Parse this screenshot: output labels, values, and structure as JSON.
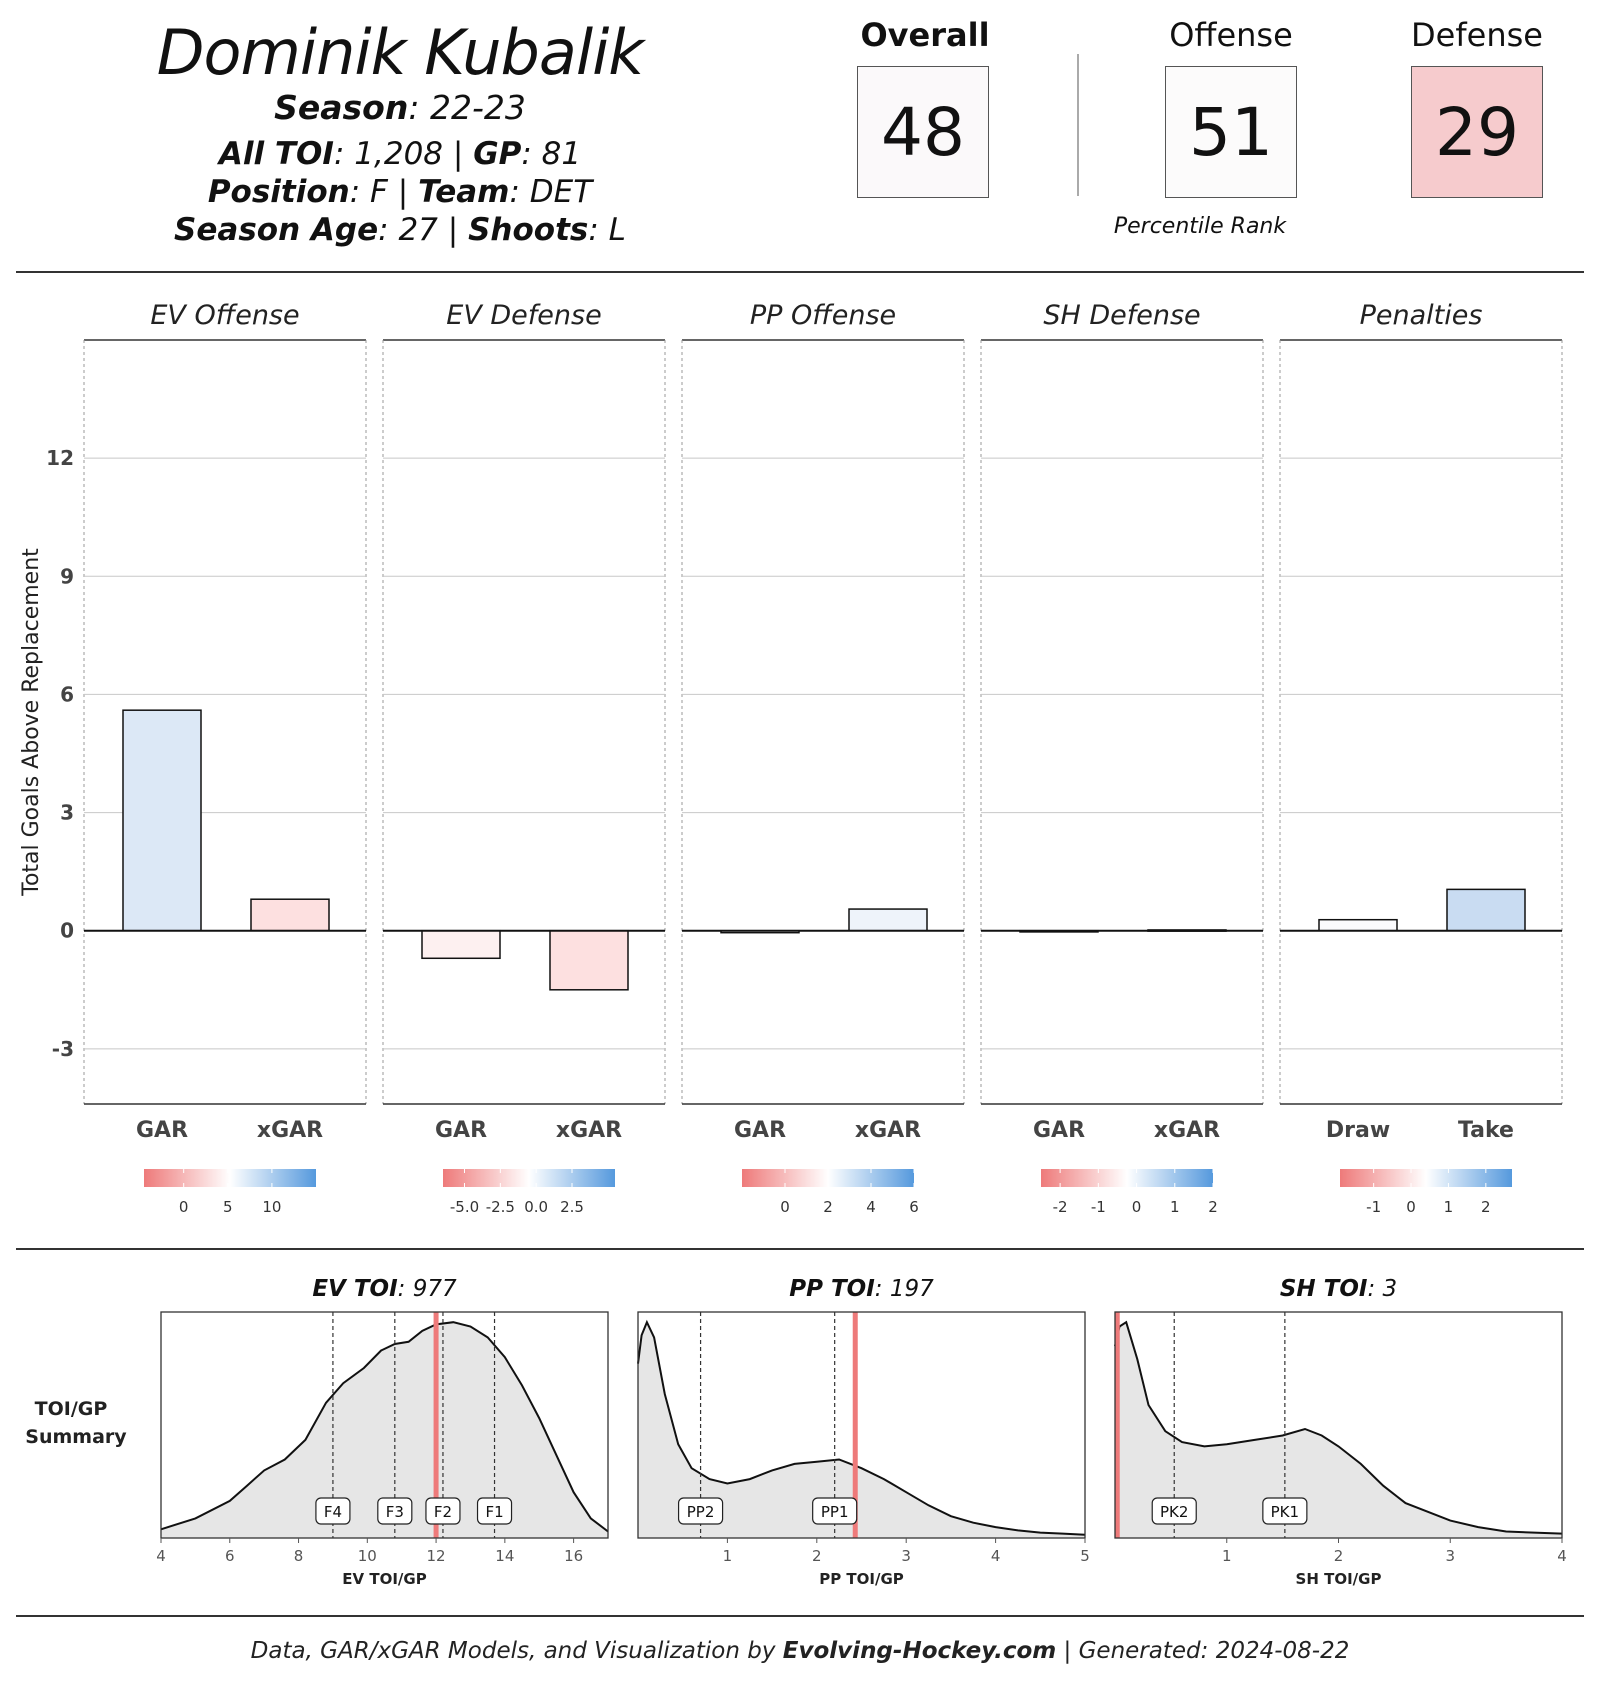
{
  "header": {
    "player_name": "Dominik Kubalik",
    "season_label": "Season",
    "season_value": "22-23",
    "toi_label": "All TOI",
    "toi_value": "1,208",
    "gp_label": "GP",
    "gp_value": "81",
    "position_label": "Position",
    "position_value": "F",
    "team_label": "Team",
    "team_value": "DET",
    "age_label": "Season Age",
    "age_value": "27",
    "shoots_label": "Shoots",
    "shoots_value": "L",
    "separator": "|"
  },
  "percentiles": {
    "overall_label": "Overall",
    "overall_value": "48",
    "overall_color": "#fbf9fa",
    "offense_label": "Offense",
    "offense_value": "51",
    "offense_color": "#fcfbfb",
    "defense_label": "Defense",
    "defense_value": "29",
    "defense_color": "#f6cbcd",
    "caption": "Percentile Rank"
  },
  "chart_data": [
    {
      "type": "bar",
      "ylabel": "Total Goals Above Replacement",
      "ylim": [
        -4.4,
        15
      ],
      "yticks": [
        -3,
        0,
        3,
        6,
        9,
        12
      ],
      "grid": true,
      "panels": [
        {
          "title": "EV Offense",
          "categories": [
            "GAR",
            "xGAR"
          ],
          "values": [
            5.6,
            0.8
          ],
          "colors": [
            "#dce8f6",
            "#fde0e0"
          ],
          "colorbar": {
            "ticks": [
              "0",
              "5",
              "10"
            ],
            "tick_values": [
              0,
              5,
              10
            ],
            "range": [
              -4.5,
              15
            ]
          }
        },
        {
          "title": "EV Defense",
          "categories": [
            "GAR",
            "xGAR"
          ],
          "values": [
            -0.7,
            -1.5
          ],
          "colors": [
            "#fdf0f0",
            "#fde0e0"
          ],
          "colorbar": {
            "ticks": [
              "-5.0",
              "-2.5",
              "0.0",
              "2.5"
            ],
            "tick_values": [
              -5,
              -2.5,
              0,
              2.5
            ],
            "range": [
              -6.5,
              5.5
            ]
          }
        },
        {
          "title": "PP Offense",
          "categories": [
            "GAR",
            "xGAR"
          ],
          "values": [
            -0.05,
            0.55
          ],
          "colors": [
            "#fdfafa",
            "#eef3fa"
          ],
          "colorbar": {
            "ticks": [
              "0",
              "2",
              "4",
              "6"
            ],
            "tick_values": [
              0,
              2,
              4,
              6
            ],
            "range": [
              -2,
              6
            ]
          }
        },
        {
          "title": "SH Defense",
          "categories": [
            "GAR",
            "xGAR"
          ],
          "values": [
            -0.02,
            0.02
          ],
          "colors": [
            "#fafafa",
            "#fafafa"
          ],
          "colorbar": {
            "ticks": [
              "-2",
              "-1",
              "0",
              "1",
              "2"
            ],
            "tick_values": [
              -2,
              -1,
              0,
              1,
              2
            ],
            "range": [
              -2.5,
              2
            ]
          }
        },
        {
          "title": "Penalties",
          "categories": [
            "Draw",
            "Take"
          ],
          "values": [
            0.28,
            1.05
          ],
          "colors": [
            "#fbfbfd",
            "#c9dcf2"
          ],
          "colorbar": {
            "ticks": [
              "-1",
              "0",
              "1",
              "2"
            ],
            "tick_values": [
              -1,
              0,
              1,
              2
            ],
            "range": [
              -1.9,
              2.7
            ]
          }
        }
      ]
    },
    {
      "type": "area",
      "row_label_line1": "TOI/GP",
      "row_label_line2": "Summary",
      "panels": [
        {
          "title_label": "EV TOI",
          "title_value": "977",
          "xlabel": "EV TOI/GP",
          "xlim": [
            4,
            17
          ],
          "xticks": [
            4,
            6,
            8,
            10,
            12,
            14,
            16
          ],
          "player_value": 12.0,
          "markers": [
            {
              "label": "F4",
              "x": 9.0
            },
            {
              "label": "F3",
              "x": 10.8
            },
            {
              "label": "F2",
              "x": 12.2
            },
            {
              "label": "F1",
              "x": 13.7
            }
          ],
          "density": [
            [
              4.0,
              0.04
            ],
            [
              5.0,
              0.09
            ],
            [
              6.0,
              0.17
            ],
            [
              6.5,
              0.24
            ],
            [
              7.0,
              0.31
            ],
            [
              7.6,
              0.36
            ],
            [
              8.2,
              0.45
            ],
            [
              8.8,
              0.62
            ],
            [
              9.3,
              0.71
            ],
            [
              9.9,
              0.78
            ],
            [
              10.4,
              0.86
            ],
            [
              10.8,
              0.89
            ],
            [
              11.2,
              0.9
            ],
            [
              11.6,
              0.95
            ],
            [
              12.0,
              0.98
            ],
            [
              12.5,
              0.99
            ],
            [
              13.0,
              0.97
            ],
            [
              13.5,
              0.92
            ],
            [
              14.0,
              0.83
            ],
            [
              14.5,
              0.7
            ],
            [
              15.0,
              0.55
            ],
            [
              15.5,
              0.38
            ],
            [
              16.0,
              0.21
            ],
            [
              16.5,
              0.09
            ],
            [
              17.0,
              0.03
            ]
          ]
        },
        {
          "title_label": "PP TOI",
          "title_value": "197",
          "xlabel": "PP TOI/GP",
          "xlim": [
            0,
            5
          ],
          "xticks": [
            1,
            2,
            3,
            4,
            5
          ],
          "player_value": 2.43,
          "markers": [
            {
              "label": "PP2",
              "x": 0.7
            },
            {
              "label": "PP1",
              "x": 2.2
            }
          ],
          "density": [
            [
              0.0,
              0.8
            ],
            [
              0.04,
              0.93
            ],
            [
              0.1,
              0.99
            ],
            [
              0.18,
              0.92
            ],
            [
              0.3,
              0.66
            ],
            [
              0.45,
              0.43
            ],
            [
              0.6,
              0.32
            ],
            [
              0.8,
              0.27
            ],
            [
              1.0,
              0.25
            ],
            [
              1.25,
              0.27
            ],
            [
              1.5,
              0.31
            ],
            [
              1.75,
              0.34
            ],
            [
              2.0,
              0.35
            ],
            [
              2.25,
              0.36
            ],
            [
              2.5,
              0.32
            ],
            [
              2.75,
              0.27
            ],
            [
              3.0,
              0.21
            ],
            [
              3.25,
              0.15
            ],
            [
              3.5,
              0.1
            ],
            [
              3.75,
              0.07
            ],
            [
              4.0,
              0.05
            ],
            [
              4.25,
              0.035
            ],
            [
              4.5,
              0.025
            ],
            [
              4.75,
              0.02
            ],
            [
              5.0,
              0.015
            ]
          ]
        },
        {
          "title_label": "SH TOI",
          "title_value": "3",
          "xlabel": "SH TOI/GP",
          "xlim": [
            0,
            4
          ],
          "xticks": [
            1,
            2,
            3,
            4
          ],
          "player_value": 0.02,
          "markers": [
            {
              "label": "PK2",
              "x": 0.53
            },
            {
              "label": "PK1",
              "x": 1.52
            }
          ],
          "density": [
            [
              0.0,
              0.88
            ],
            [
              0.04,
              0.97
            ],
            [
              0.1,
              0.99
            ],
            [
              0.2,
              0.82
            ],
            [
              0.3,
              0.61
            ],
            [
              0.45,
              0.49
            ],
            [
              0.6,
              0.44
            ],
            [
              0.8,
              0.42
            ],
            [
              1.0,
              0.43
            ],
            [
              1.25,
              0.45
            ],
            [
              1.5,
              0.47
            ],
            [
              1.7,
              0.5
            ],
            [
              1.85,
              0.47
            ],
            [
              2.0,
              0.42
            ],
            [
              2.2,
              0.34
            ],
            [
              2.4,
              0.24
            ],
            [
              2.6,
              0.16
            ],
            [
              2.8,
              0.12
            ],
            [
              3.0,
              0.08
            ],
            [
              3.25,
              0.05
            ],
            [
              3.5,
              0.03
            ],
            [
              3.75,
              0.025
            ],
            [
              4.0,
              0.02
            ]
          ]
        }
      ]
    }
  ],
  "footer": {
    "prefix": "Data, GAR/xGAR Models, and Visualization by",
    "brand": "Evolving-Hockey.com",
    "separator": "|",
    "generated": "Generated: 2024-08-22"
  },
  "colors": {
    "negative": "#ee7a7a",
    "neutral": "#ffffff",
    "positive": "#5599dd",
    "density_fill": "#e6e6e6",
    "player_line": "#ee7a7a"
  }
}
